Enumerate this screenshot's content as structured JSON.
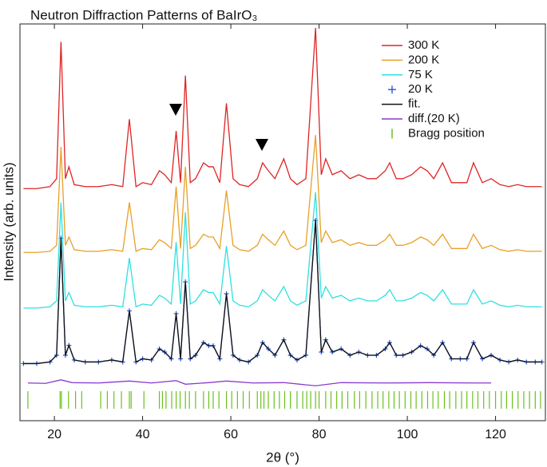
{
  "chart_data": {
    "type": "line",
    "title": "Neutron Diffraction Patterns of BaIrO₃",
    "xlabel": "2θ (°)",
    "ylabel": "Intensity (arb. units)",
    "xlim": [
      12.2,
      131.3
    ],
    "ylim": [
      0,
      100
    ],
    "xticks": [
      20,
      40,
      60,
      80,
      100,
      120
    ],
    "legend": "top-right",
    "x": [
      13,
      16,
      19,
      20.5,
      21.5,
      22.5,
      23.3,
      24.5,
      27,
      30,
      33,
      35.5,
      37,
      38.5,
      40,
      42,
      43.8,
      45,
      46.5,
      47.6,
      48.6,
      49.7,
      50.8,
      52,
      53.8,
      55,
      56,
      57.5,
      59,
      60.5,
      62,
      64,
      66,
      67.2,
      68.5,
      70,
      72,
      73.5,
      75,
      77,
      79.2,
      80.5,
      81.5,
      83,
      85,
      87,
      89,
      91,
      93,
      95,
      96,
      97.5,
      99,
      101,
      103,
      104.5,
      106,
      108,
      110,
      112,
      113.5,
      115,
      117,
      119,
      121,
      123,
      125,
      127,
      129,
      130.5
    ],
    "series": [
      {
        "name": "300 K",
        "color": "#e02424",
        "marker": "line",
        "values": [
          58.5,
          58.5,
          59,
          61,
          95.5,
          61,
          64,
          59.5,
          59,
          59,
          59.5,
          59,
          76,
          59,
          60,
          59.5,
          63,
          62,
          60,
          73,
          60,
          87,
          60,
          61,
          65,
          64,
          64,
          60,
          80,
          61,
          59.5,
          59,
          61,
          65,
          63,
          61,
          66,
          61,
          59.5,
          61,
          99,
          62,
          66,
          62,
          63,
          61,
          62,
          61,
          61,
          63,
          65,
          61,
          61,
          62,
          64,
          63,
          61,
          65,
          60,
          60,
          60,
          65,
          60,
          61,
          59.5,
          59,
          59.5,
          59,
          59,
          59
        ]
      },
      {
        "name": "200 K",
        "color": "#e8a028",
        "marker": "line",
        "values": [
          42.4,
          42.4,
          42.7,
          44.2,
          69,
          44.2,
          46.3,
          43.1,
          42.7,
          42.7,
          43.1,
          42.7,
          55,
          42.7,
          43.4,
          43.1,
          45.6,
          44.9,
          43.4,
          59,
          43.4,
          64,
          43.4,
          44.2,
          47,
          46.3,
          46.3,
          43.4,
          58,
          44.2,
          43.1,
          42.7,
          44.2,
          47,
          45.6,
          44.2,
          47.8,
          44.2,
          43.1,
          44.2,
          72,
          44.9,
          47.8,
          44.9,
          45.6,
          44.2,
          44.9,
          44.2,
          44.2,
          45.6,
          47,
          44.2,
          44.2,
          44.9,
          46.3,
          45.6,
          44.2,
          47,
          43.4,
          43.4,
          43.4,
          47,
          43.4,
          44.2,
          43.1,
          42.7,
          43.1,
          42.7,
          42.7,
          42.7
        ]
      },
      {
        "name": "75 K",
        "color": "#30e0e0",
        "marker": "line",
        "values": [
          28.4,
          28.4,
          28.7,
          30.2,
          55,
          30.2,
          32.3,
          29.1,
          28.7,
          28.7,
          29.1,
          28.7,
          41,
          28.7,
          29.4,
          29.1,
          31.6,
          30.9,
          29.4,
          45,
          29.4,
          52.5,
          29.4,
          30.2,
          33,
          32.3,
          32.3,
          29.4,
          44,
          30.2,
          29.1,
          28.7,
          30.2,
          33,
          31.6,
          30.2,
          33.8,
          30.2,
          29.1,
          30.2,
          57.6,
          30.9,
          33.8,
          30.9,
          31.6,
          30.2,
          30.9,
          30.2,
          30.2,
          31.6,
          33,
          30.2,
          30.2,
          30.9,
          32.3,
          31.6,
          30.2,
          33,
          29.4,
          29.4,
          29.4,
          33,
          29.4,
          30.2,
          29.1,
          28.7,
          29.1,
          28.7,
          28.7,
          28.7
        ]
      },
      {
        "name": "20 K",
        "color": "#2450d0",
        "marker": "plus",
        "values": [
          14.4,
          14.4,
          14.8,
          16.5,
          46,
          16.5,
          19,
          15.3,
          14.8,
          14.8,
          15.3,
          14.8,
          27.7,
          14.8,
          15.6,
          15.3,
          18.1,
          17.3,
          15.6,
          27,
          15.6,
          35,
          15.6,
          16.5,
          19.7,
          18.9,
          18.9,
          15.6,
          32,
          16.5,
          15.3,
          14.8,
          16.5,
          19.7,
          18.1,
          16.5,
          20.4,
          16.5,
          15.3,
          16.5,
          50.5,
          17.3,
          20.4,
          17.3,
          18.1,
          16.5,
          17.3,
          16.5,
          16.5,
          18.1,
          19.7,
          16.5,
          16.5,
          17.3,
          18.9,
          18.1,
          16.5,
          19.7,
          15.6,
          15.6,
          15.6,
          19.7,
          15.6,
          16.5,
          15.3,
          14.8,
          15.3,
          14.8,
          14.8,
          14.8
        ]
      },
      {
        "name": "fit.",
        "color": "#111111",
        "marker": "line",
        "values": [
          14.4,
          14.4,
          14.8,
          16.5,
          46,
          16.5,
          19,
          15.3,
          14.8,
          14.8,
          15.3,
          14.8,
          27.7,
          14.8,
          15.6,
          15.3,
          18.1,
          17.3,
          15.6,
          27,
          15.6,
          35,
          15.6,
          16.5,
          19.7,
          18.9,
          18.9,
          15.6,
          32,
          16.5,
          15.3,
          14.8,
          16.5,
          19.7,
          18.1,
          16.5,
          20.4,
          16.5,
          15.3,
          16.5,
          50.5,
          17.3,
          20.4,
          17.3,
          18.1,
          16.5,
          17.3,
          16.5,
          16.5,
          18.1,
          19.7,
          16.5,
          16.5,
          17.3,
          18.9,
          18.1,
          16.5,
          19.7,
          15.6,
          15.6,
          15.6,
          19.7,
          15.6,
          16.5,
          15.3,
          14.8,
          15.3,
          14.8,
          14.8,
          14.8
        ]
      },
      {
        "name": "diff.(20 K)",
        "color": "#8a3ad0",
        "marker": "line",
        "x": [
          14,
          18,
          21.5,
          24,
          30,
          37,
          42,
          47.6,
          49.7,
          55,
          59,
          65,
          72,
          79.2,
          85,
          95,
          105,
          115,
          119
        ],
        "values": [
          9.5,
          9.4,
          10.3,
          9.6,
          9.5,
          10,
          9.5,
          10.1,
          9.2,
          9.6,
          10,
          9.5,
          9.6,
          8.8,
          9.6,
          9.5,
          9.6,
          9.5,
          9.5
        ]
      },
      {
        "name": "Bragg position",
        "color": "#6ac020",
        "marker": "bragg",
        "x": [
          14,
          21.3,
          21.6,
          23.2,
          24.8,
          26.2,
          30.5,
          32,
          33.5,
          35.2,
          37,
          37.4,
          40.3,
          43.8,
          44.5,
          45.3,
          46.6,
          47.6,
          48.5,
          49.7,
          50.6,
          52,
          53.8,
          55,
          56,
          57.3,
          59,
          60.2,
          61.5,
          62.8,
          64.2,
          66,
          66.8,
          67.5,
          68.5,
          69.8,
          71,
          72.2,
          73.5,
          75,
          76.3,
          77.2,
          78.1,
          79.2,
          80,
          81.5,
          82.7,
          84,
          85.2,
          86.5,
          88,
          89.2,
          90.6,
          92,
          93.3,
          94.5,
          95.8,
          97,
          98.2,
          99.5,
          100.8,
          102,
          103.3,
          104.6,
          105.8,
          107,
          108.4,
          109.6,
          111,
          112.3,
          113.5,
          114.8,
          116,
          117.3,
          118.6,
          120,
          121.3,
          122.5,
          123.8,
          125.1,
          126.4,
          127.7,
          129,
          130.2
        ]
      }
    ]
  }
}
